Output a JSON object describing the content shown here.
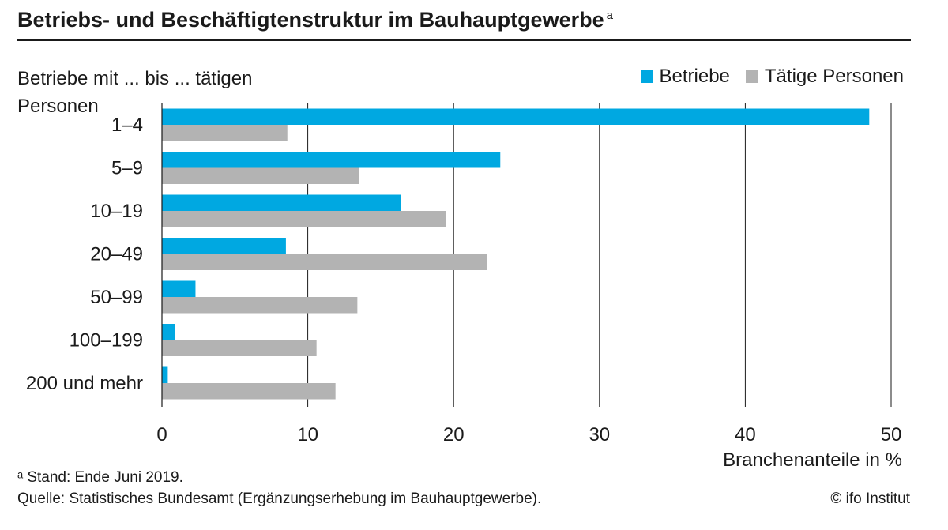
{
  "header": {
    "title": "Betriebs- und Beschäftigtenstruktur im Bauhauptgewerbe",
    "title_marker": "a"
  },
  "chart_data": {
    "type": "bar",
    "orientation": "horizontal",
    "title": "Betriebs- und Beschäftigtenstruktur im Bauhauptgewerbe",
    "ylabel": "Betriebe mit ... bis  ... tätigen Personen",
    "xlabel": "Branchenanteile in %",
    "xlim": [
      0,
      50
    ],
    "xticks": [
      0,
      10,
      20,
      30,
      40,
      50
    ],
    "grid": true,
    "legend_position": "top-right",
    "categories": [
      "1–4",
      "5–9",
      "10–19",
      "20–49",
      "50–99",
      "100–199",
      "200 und mehr"
    ],
    "series": [
      {
        "name": "Betriebe",
        "color": "#00a8e1",
        "values": [
          48.5,
          23.2,
          16.4,
          8.5,
          2.3,
          0.9,
          0.4
        ]
      },
      {
        "name": "Tätige Personen",
        "color": "#b3b3b3",
        "values": [
          8.6,
          13.5,
          19.5,
          22.3,
          13.4,
          10.6,
          11.9
        ]
      }
    ]
  },
  "footer": {
    "footnote": "ᵃ Stand: Ende Juni 2019.",
    "source": "Quelle: Statistisches Bundesamt (Ergänzungserhebung im Bauhauptgewerbe).",
    "copyright": "© ifo Institut"
  }
}
